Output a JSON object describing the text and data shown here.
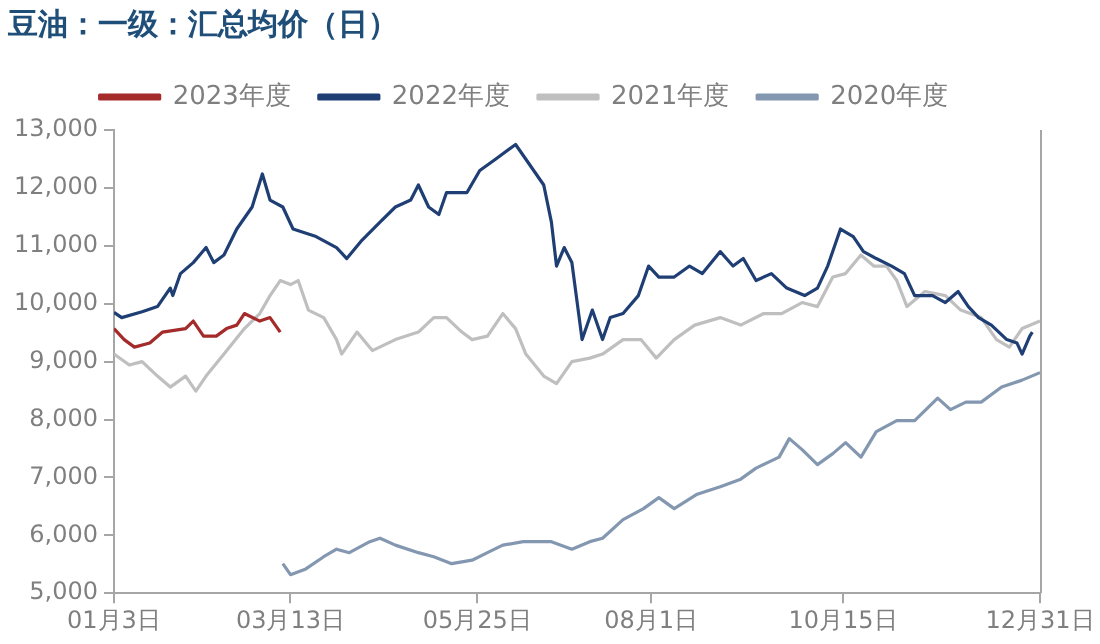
{
  "chart_data": {
    "type": "line",
    "title": "豆油：一级：汇总均价（日）",
    "legend": "top",
    "grid": false,
    "marker": "none",
    "line_style": "solid",
    "xlim": [
      "--01-03",
      "--12-31"
    ],
    "xticks": [
      {
        "value": "--01-03",
        "label": "01月3日"
      },
      {
        "value": "--03-13",
        "label": "03月13日"
      },
      {
        "value": "--05-25",
        "label": "05月25日"
      },
      {
        "value": "--08-01",
        "label": "08月1日"
      },
      {
        "value": "--10-15",
        "label": "10月15日"
      },
      {
        "value": "--12-31",
        "label": "12月31日"
      }
    ],
    "ylim": [
      5000,
      13000
    ],
    "yticks": [
      {
        "value": 5000,
        "label": "5,000"
      },
      {
        "value": 6000,
        "label": "6,000"
      },
      {
        "value": 7000,
        "label": "7,000"
      },
      {
        "value": 8000,
        "label": "8,000"
      },
      {
        "value": 9000,
        "label": "9,000"
      },
      {
        "value": 10000,
        "label": "10,000"
      },
      {
        "value": 11000,
        "label": "11,000"
      },
      {
        "value": 12000,
        "label": "12,000"
      },
      {
        "value": 13000,
        "label": "13,000"
      }
    ],
    "series": [
      {
        "name": "2023年度",
        "color": "#a52a2a",
        "x": [
          "--01-03",
          "--01-07",
          "--01-11",
          "--01-17",
          "--01-22",
          "--01-31",
          "--02-03",
          "--02-07",
          "--02-12",
          "--02-16",
          "--02-20",
          "--02-23",
          "--03-01",
          "--03-05",
          "--03-09"
        ],
        "values": [
          9570,
          9380,
          9250,
          9320,
          9510,
          9570,
          9700,
          9440,
          9440,
          9570,
          9630,
          9830,
          9700,
          9760,
          9510
        ]
      },
      {
        "name": "2022年度",
        "color": "#1f3f74",
        "x": [
          "--01-03",
          "--01-06",
          "--01-14",
          "--01-20",
          "--01-25",
          "--01-26",
          "--01-29",
          "--02-03",
          "--02-08",
          "--02-11",
          "--02-15",
          "--02-20",
          "--02-26",
          "--03-02",
          "--03-05",
          "--03-10",
          "--03-14",
          "--03-23",
          "--03-31",
          "--04-04",
          "--04-10",
          "--04-17",
          "--04-23",
          "--04-29",
          "--05-02",
          "--05-06",
          "--05-10",
          "--05-13",
          "--05-21",
          "--05-26",
          "--06-01",
          "--06-09",
          "--06-12",
          "--06-20",
          "--06-23",
          "--06-25",
          "--06-28",
          "--07-01",
          "--07-05",
          "--07-09",
          "--07-13",
          "--07-16",
          "--07-21",
          "--07-27",
          "--07-31",
          "--08-04",
          "--08-10",
          "--08-16",
          "--08-21",
          "--08-28",
          "--09-02",
          "--09-06",
          "--09-11",
          "--09-17",
          "--09-23",
          "--09-30",
          "--10-05",
          "--10-09",
          "--10-14",
          "--10-19",
          "--10-23",
          "--10-28",
          "--11-03",
          "--11-08",
          "--11-12",
          "--11-19",
          "--11-24",
          "--11-29",
          "--12-03",
          "--12-07",
          "--12-12",
          "--12-18",
          "--12-22",
          "--12-24",
          "--12-27",
          "--12-28"
        ],
        "values": [
          9850,
          9760,
          9860,
          9950,
          10270,
          10140,
          10520,
          10710,
          10970,
          10710,
          10840,
          11290,
          11670,
          12240,
          11790,
          11670,
          11290,
          11160,
          10970,
          10780,
          11100,
          11410,
          11670,
          11790,
          12050,
          11670,
          11540,
          11920,
          11920,
          12300,
          12490,
          12750,
          12560,
          12050,
          11410,
          10650,
          10970,
          10710,
          9380,
          9890,
          9380,
          9760,
          9830,
          10140,
          10650,
          10460,
          10460,
          10650,
          10520,
          10900,
          10650,
          10780,
          10400,
          10520,
          10270,
          10140,
          10270,
          10650,
          11290,
          11160,
          10900,
          10780,
          10650,
          10520,
          10140,
          10140,
          10020,
          10210,
          9950,
          9760,
          9630,
          9380,
          9320,
          9130,
          9440,
          9510
        ]
      },
      {
        "name": "2021年度",
        "color": "#bfbfbf",
        "x": [
          "--01-03",
          "--01-09",
          "--01-14",
          "--01-20",
          "--01-25",
          "--01-31",
          "--02-04",
          "--02-08",
          "--02-15",
          "--02-23",
          "--03-01",
          "--03-05",
          "--03-09",
          "--03-13",
          "--03-16",
          "--03-20",
          "--03-26",
          "--03-31",
          "--04-02",
          "--04-08",
          "--04-14",
          "--04-23",
          "--05-02",
          "--05-08",
          "--05-13",
          "--05-19",
          "--05-23",
          "--05-29",
          "--06-04",
          "--06-09",
          "--06-13",
          "--06-20",
          "--06-25",
          "--07-01",
          "--07-08",
          "--07-13",
          "--07-21",
          "--07-28",
          "--08-03",
          "--08-10",
          "--08-18",
          "--08-28",
          "--09-05",
          "--09-14",
          "--09-21",
          "--09-29",
          "--10-05",
          "--10-11",
          "--10-16",
          "--10-22",
          "--10-27",
          "--11-01",
          "--11-05",
          "--11-09",
          "--11-16",
          "--11-24",
          "--11-30",
          "--12-08",
          "--12-14",
          "--12-19",
          "--12-24",
          "--12-31"
        ],
        "values": [
          9130,
          8940,
          9000,
          8750,
          8560,
          8750,
          8490,
          8750,
          9130,
          9570,
          9830,
          10140,
          10400,
          10330,
          10400,
          9890,
          9760,
          9380,
          9130,
          9510,
          9190,
          9380,
          9510,
          9760,
          9760,
          9510,
          9380,
          9440,
          9830,
          9570,
          9130,
          8750,
          8620,
          9000,
          9060,
          9130,
          9380,
          9380,
          9060,
          9380,
          9630,
          9760,
          9630,
          9830,
          9830,
          10020,
          9950,
          10460,
          10520,
          10840,
          10650,
          10650,
          10400,
          9950,
          10210,
          10140,
          9890,
          9760,
          9380,
          9250,
          9570,
          9700
        ]
      },
      {
        "name": "2020年度",
        "color": "#8497b0",
        "x": [
          "--03-10",
          "--03-13",
          "--03-19",
          "--03-26",
          "--03-31",
          "--04-05",
          "--04-13",
          "--04-17",
          "--04-23",
          "--05-02",
          "--05-08",
          "--05-15",
          "--05-23",
          "--05-29",
          "--06-04",
          "--06-12",
          "--06-23",
          "--07-01",
          "--07-08",
          "--07-13",
          "--07-21",
          "--07-29",
          "--08-04",
          "--08-10",
          "--08-19",
          "--08-28",
          "--09-05",
          "--09-11",
          "--09-20",
          "--09-24",
          "--09-29",
          "--10-05",
          "--10-11",
          "--10-16",
          "--10-22",
          "--10-28",
          "--11-05",
          "--11-12",
          "--11-21",
          "--11-26",
          "--12-02",
          "--12-08",
          "--12-16",
          "--12-24",
          "--12-31"
        ],
        "values": [
          5510,
          5320,
          5420,
          5630,
          5760,
          5700,
          5890,
          5950,
          5830,
          5700,
          5630,
          5510,
          5570,
          5700,
          5830,
          5890,
          5890,
          5760,
          5890,
          5950,
          6270,
          6460,
          6650,
          6460,
          6710,
          6840,
          6970,
          7160,
          7350,
          7670,
          7480,
          7220,
          7410,
          7600,
          7350,
          7790,
          7980,
          7980,
          8370,
          8170,
          8300,
          8300,
          8560,
          8680,
          8810
        ]
      }
    ]
  }
}
